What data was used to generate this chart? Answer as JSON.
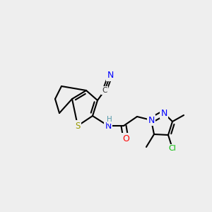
{
  "background_color": "#eeeeee",
  "colors": {
    "bond": "#000000",
    "S": "#999900",
    "N": "#0000ff",
    "O": "#ff0000",
    "Cl": "#00bb00",
    "H": "#5599aa",
    "C": "#000000"
  },
  "figsize": [
    3.0,
    3.0
  ],
  "dpi": 100
}
